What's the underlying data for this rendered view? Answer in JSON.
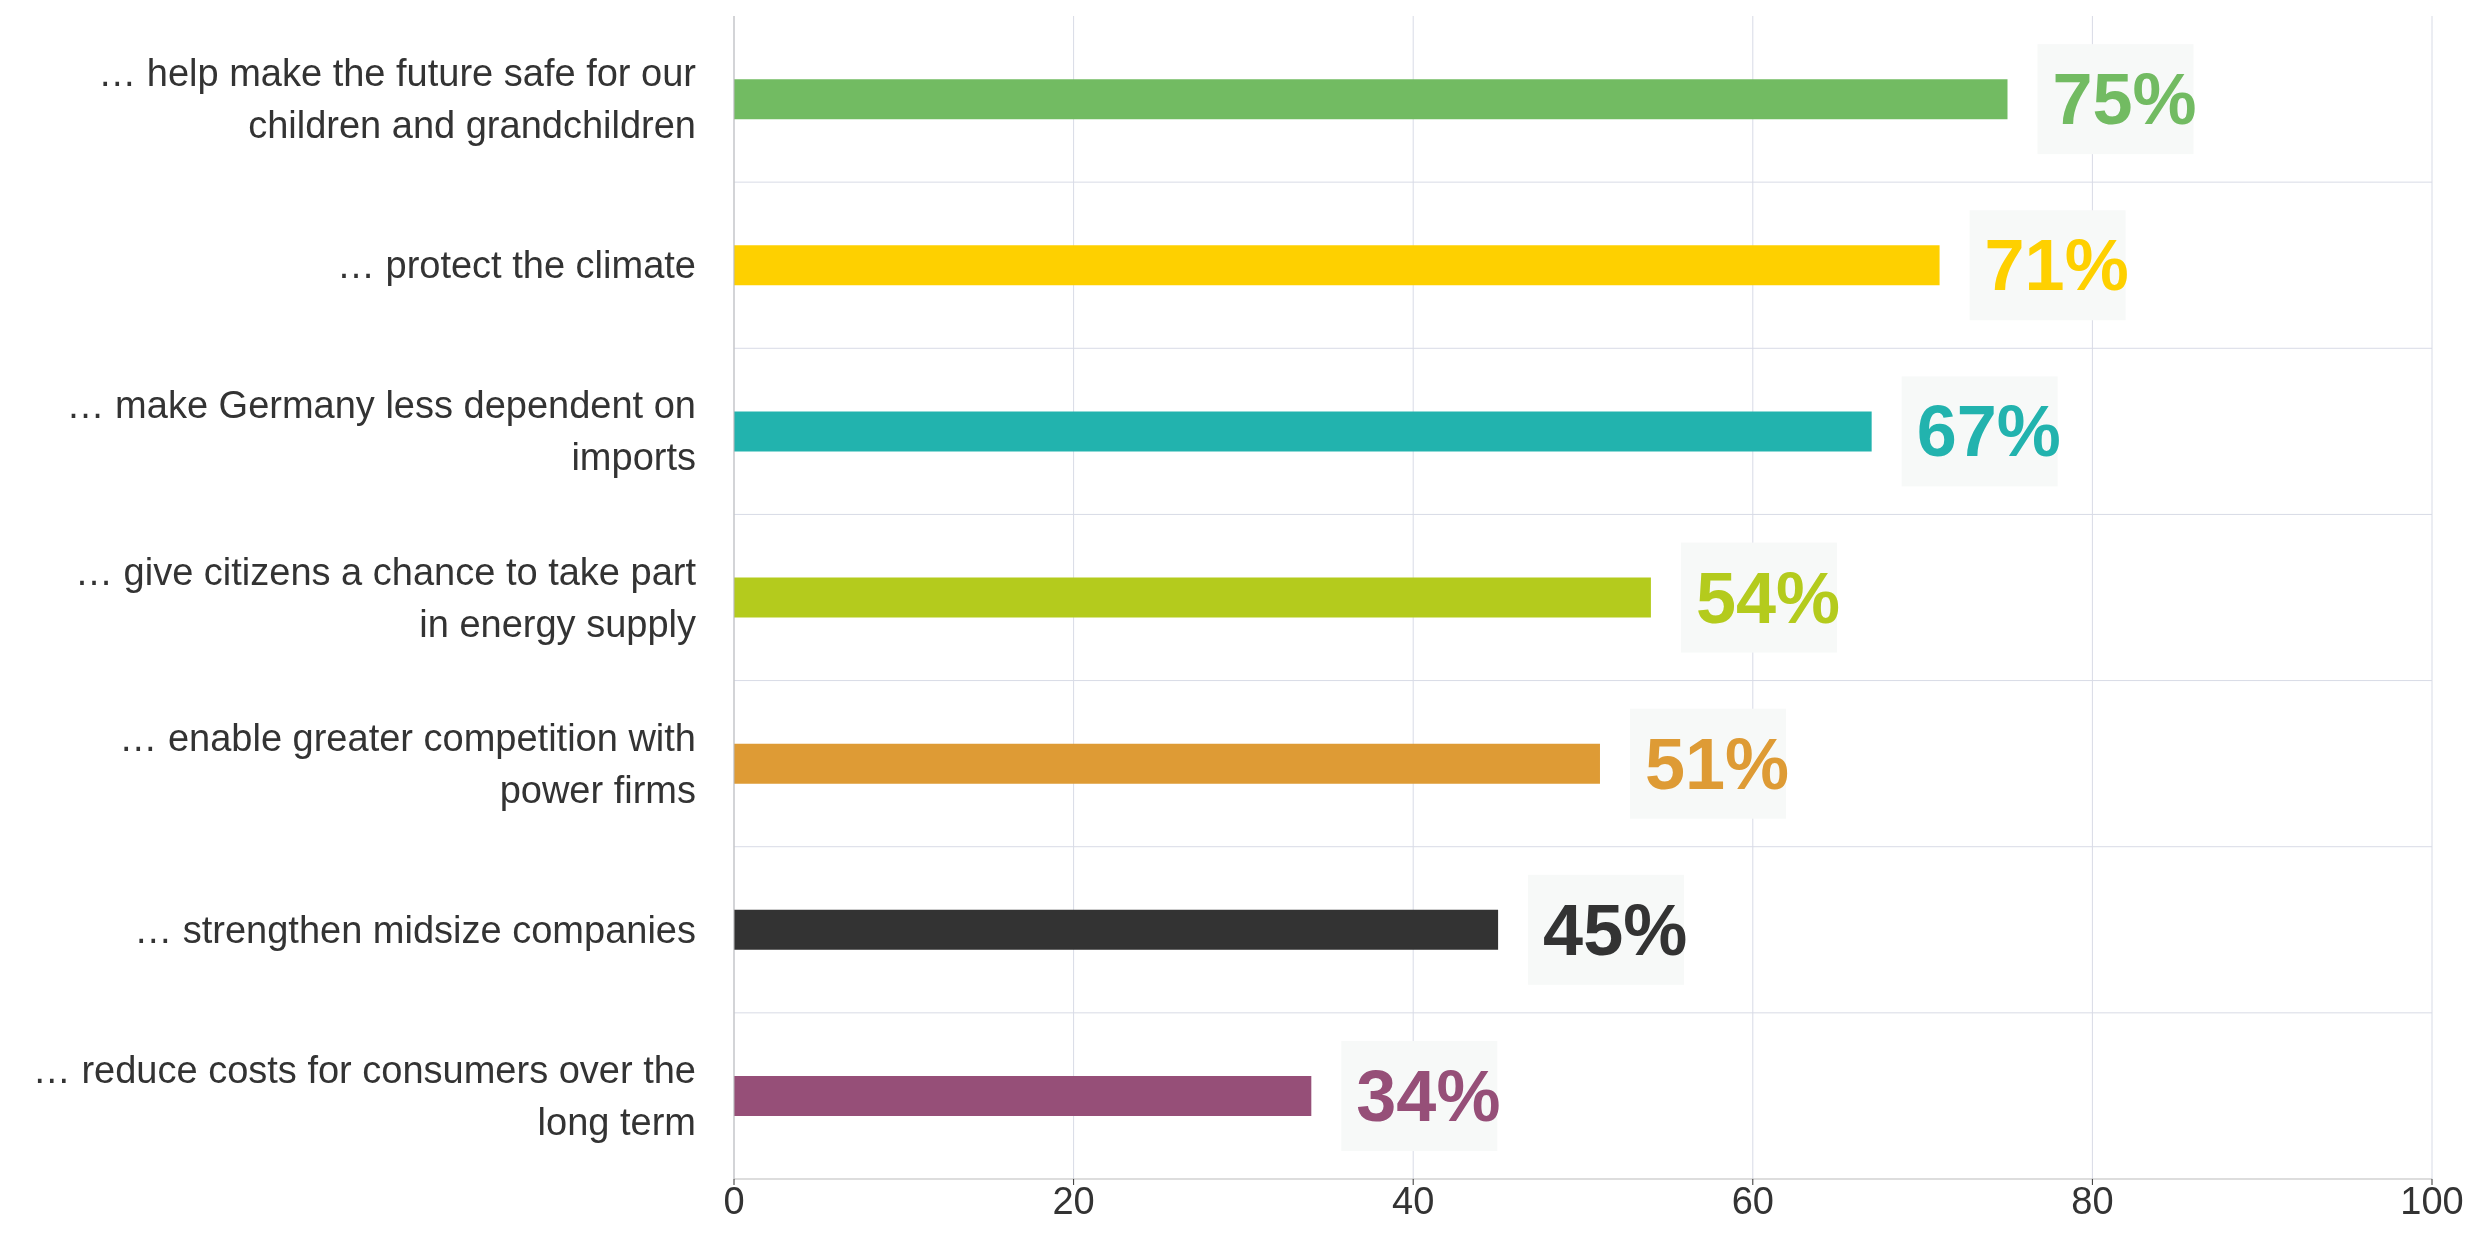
{
  "chart_data": {
    "type": "bar",
    "orientation": "horizontal",
    "categories": [
      "… help make the future safe for our children and grandchildren",
      "… protect the climate",
      "… make Germany less dependent on imports",
      "… give citizens a chance to take part in energy supply",
      "… enable greater competition with power firms",
      "… strengthen midsize companies",
      "… reduce costs for consumers over the long term"
    ],
    "values": [
      75,
      71,
      67,
      54,
      51,
      45,
      34
    ],
    "colors": [
      "#72bb62",
      "#fed000",
      "#22b3ae",
      "#b4cb1d",
      "#de9b35",
      "#333333",
      "#964f78"
    ],
    "value_labels": [
      "75%",
      "71%",
      "67%",
      "54%",
      "51%",
      "45%",
      "34%"
    ],
    "xlim": [
      0,
      100
    ],
    "xticks": [
      0,
      20,
      40,
      60,
      80,
      100
    ],
    "grid": true
  }
}
